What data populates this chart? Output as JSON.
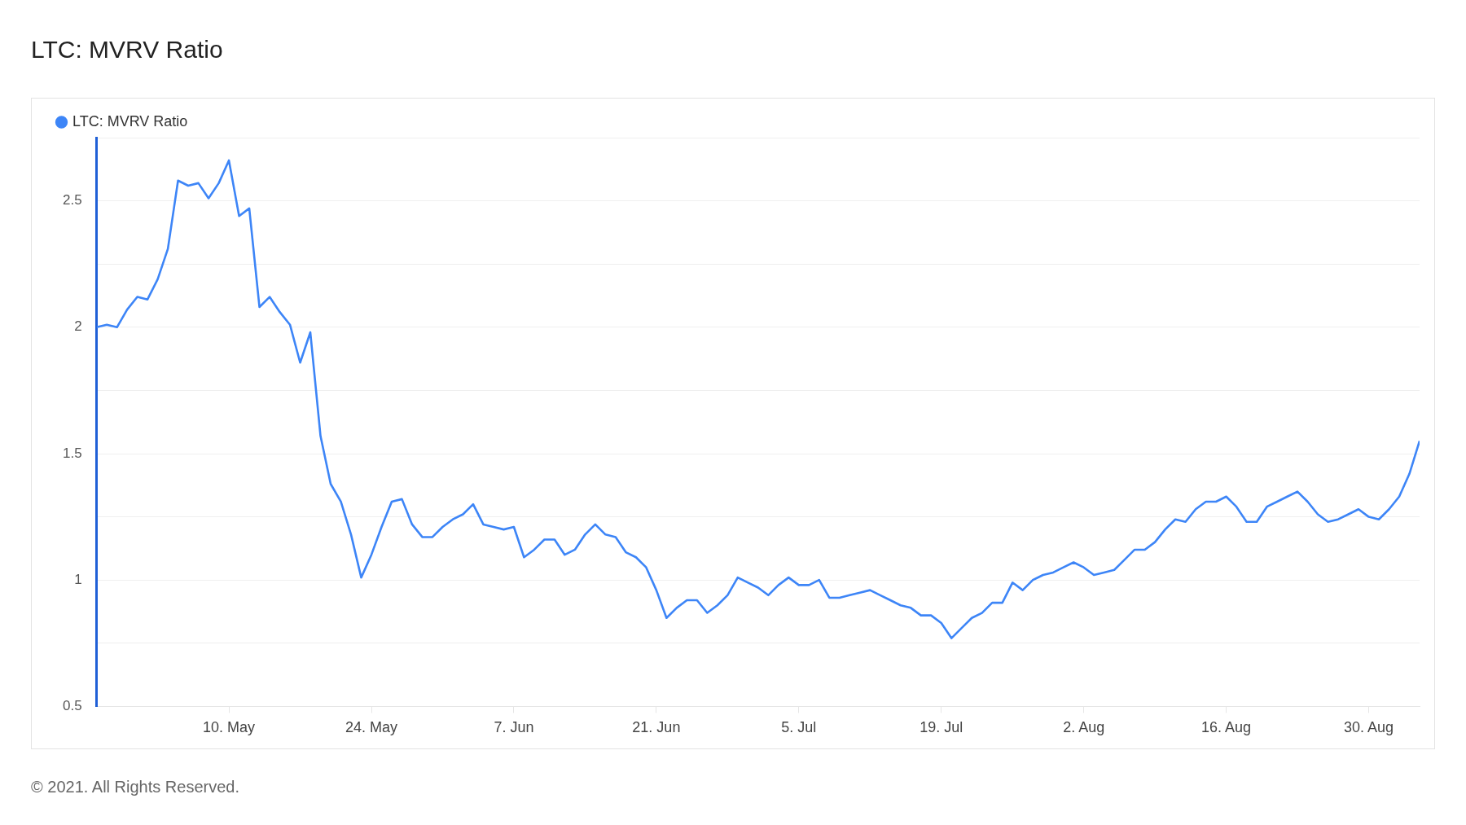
{
  "chart_data": {
    "type": "line",
    "title": "LTC: MVRV Ratio",
    "legend": "top left",
    "grid": "y",
    "marker": "none",
    "xlim": [
      "2021-04-27",
      "2021-09-04"
    ],
    "xticks": [
      {
        "value": "2021-05-10",
        "label": "10. May"
      },
      {
        "value": "2021-05-24",
        "label": "24. May"
      },
      {
        "value": "2021-06-07",
        "label": "7. Jun"
      },
      {
        "value": "2021-06-21",
        "label": "21. Jun"
      },
      {
        "value": "2021-07-05",
        "label": "5. Jul"
      },
      {
        "value": "2021-07-19",
        "label": "19. Jul"
      },
      {
        "value": "2021-08-02",
        "label": "2. Aug"
      },
      {
        "value": "2021-08-16",
        "label": "16. Aug"
      },
      {
        "value": "2021-08-30",
        "label": "30. Aug"
      }
    ],
    "ylim": [
      0.5,
      2.75
    ],
    "yticks": [
      0.5,
      {
        "value": 0.75,
        "label": null
      },
      1,
      {
        "value": 1.25,
        "label": null
      },
      1.5,
      {
        "value": 1.75,
        "label": null
      },
      2,
      {
        "value": 2.25,
        "label": null
      },
      2.5,
      {
        "value": 2.75,
        "label": null
      }
    ],
    "x": [
      "2021-04-27",
      "2021-04-28",
      "2021-04-29",
      "2021-04-30",
      "2021-05-01",
      "2021-05-02",
      "2021-05-03",
      "2021-05-04",
      "2021-05-05",
      "2021-05-06",
      "2021-05-07",
      "2021-05-08",
      "2021-05-09",
      "2021-05-10",
      "2021-05-11",
      "2021-05-12",
      "2021-05-13",
      "2021-05-14",
      "2021-05-15",
      "2021-05-16",
      "2021-05-17",
      "2021-05-18",
      "2021-05-19",
      "2021-05-20",
      "2021-05-21",
      "2021-05-22",
      "2021-05-23",
      "2021-05-24",
      "2021-05-25",
      "2021-05-26",
      "2021-05-27",
      "2021-05-28",
      "2021-05-29",
      "2021-05-30",
      "2021-05-31",
      "2021-06-01",
      "2021-06-02",
      "2021-06-03",
      "2021-06-04",
      "2021-06-05",
      "2021-06-06",
      "2021-06-07",
      "2021-06-08",
      "2021-06-09",
      "2021-06-10",
      "2021-06-11",
      "2021-06-12",
      "2021-06-13",
      "2021-06-14",
      "2021-06-15",
      "2021-06-16",
      "2021-06-17",
      "2021-06-18",
      "2021-06-19",
      "2021-06-20",
      "2021-06-21",
      "2021-06-22",
      "2021-06-23",
      "2021-06-24",
      "2021-06-25",
      "2021-06-26",
      "2021-06-27",
      "2021-06-28",
      "2021-06-29",
      "2021-06-30",
      "2021-07-01",
      "2021-07-02",
      "2021-07-03",
      "2021-07-04",
      "2021-07-05",
      "2021-07-06",
      "2021-07-07",
      "2021-07-08",
      "2021-07-09",
      "2021-07-10",
      "2021-07-11",
      "2021-07-12",
      "2021-07-13",
      "2021-07-14",
      "2021-07-15",
      "2021-07-16",
      "2021-07-17",
      "2021-07-18",
      "2021-07-19",
      "2021-07-20",
      "2021-07-21",
      "2021-07-22",
      "2021-07-23",
      "2021-07-24",
      "2021-07-25",
      "2021-07-26",
      "2021-07-27",
      "2021-07-28",
      "2021-07-29",
      "2021-07-30",
      "2021-07-31",
      "2021-08-01",
      "2021-08-02",
      "2021-08-03",
      "2021-08-04",
      "2021-08-05",
      "2021-08-06",
      "2021-08-07",
      "2021-08-08",
      "2021-08-09",
      "2021-08-10",
      "2021-08-11",
      "2021-08-12",
      "2021-08-13",
      "2021-08-14",
      "2021-08-15",
      "2021-08-16",
      "2021-08-17",
      "2021-08-18",
      "2021-08-19",
      "2021-08-20",
      "2021-08-21",
      "2021-08-22",
      "2021-08-23",
      "2021-08-24",
      "2021-08-25",
      "2021-08-26",
      "2021-08-27",
      "2021-08-28",
      "2021-08-29",
      "2021-08-30",
      "2021-08-31",
      "2021-09-01",
      "2021-09-02",
      "2021-09-03",
      "2021-09-04"
    ],
    "series": [
      {
        "name": "LTC: MVRV Ratio",
        "color": "#3d85f7",
        "values": [
          2.0,
          2.01,
          2.0,
          2.07,
          2.12,
          2.11,
          2.19,
          2.31,
          2.58,
          2.56,
          2.57,
          2.51,
          2.57,
          2.66,
          2.44,
          2.47,
          2.08,
          2.12,
          2.06,
          2.01,
          1.86,
          1.98,
          1.57,
          1.38,
          1.31,
          1.18,
          1.01,
          1.1,
          1.21,
          1.31,
          1.32,
          1.22,
          1.17,
          1.17,
          1.21,
          1.24,
          1.26,
          1.3,
          1.22,
          1.21,
          1.2,
          1.21,
          1.09,
          1.12,
          1.16,
          1.16,
          1.1,
          1.12,
          1.18,
          1.22,
          1.18,
          1.17,
          1.11,
          1.09,
          1.05,
          0.96,
          0.85,
          0.89,
          0.92,
          0.92,
          0.87,
          0.9,
          0.94,
          1.01,
          0.99,
          0.97,
          0.94,
          0.98,
          1.01,
          0.98,
          0.98,
          1.0,
          0.93,
          0.93,
          0.94,
          0.95,
          0.96,
          0.94,
          0.92,
          0.9,
          0.89,
          0.86,
          0.86,
          0.83,
          0.77,
          0.81,
          0.85,
          0.87,
          0.91,
          0.91,
          0.99,
          0.96,
          1.0,
          1.02,
          1.03,
          1.05,
          1.07,
          1.05,
          1.02,
          1.03,
          1.04,
          1.08,
          1.12,
          1.12,
          1.15,
          1.2,
          1.24,
          1.23,
          1.28,
          1.31,
          1.31,
          1.33,
          1.29,
          1.23,
          1.23,
          1.29,
          1.31,
          1.33,
          1.35,
          1.31,
          1.26,
          1.23,
          1.24,
          1.26,
          1.28,
          1.25,
          1.24,
          1.28,
          1.33,
          1.42,
          1.55
        ]
      }
    ],
    "annotations": [
      "© 2021. All Rights Reserved."
    ]
  }
}
